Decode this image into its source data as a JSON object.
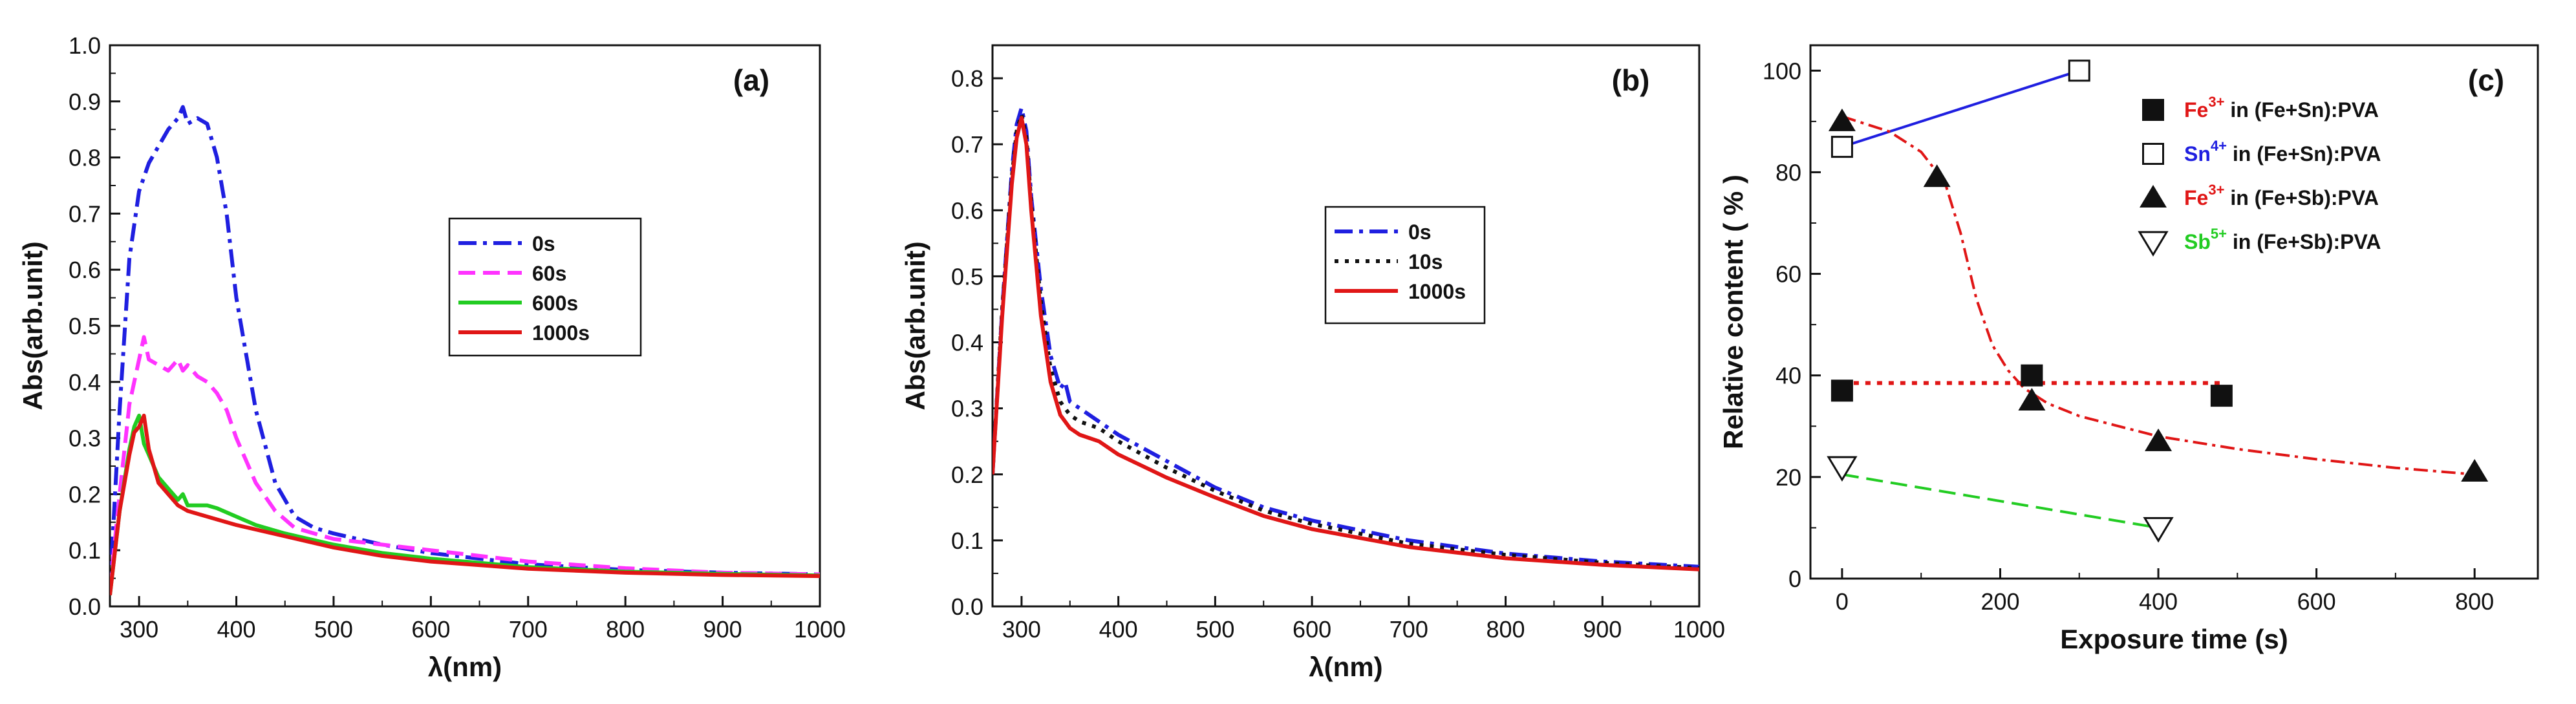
{
  "colors": {
    "blue": "#1f1fe0",
    "magenta": "#ff33ff",
    "green": "#22cc22",
    "red": "#e01616",
    "black": "#111111"
  },
  "chart_data": [
    {
      "type": "line",
      "panel_label": "(a)",
      "xlabel": "λ(nm)",
      "ylabel": "Abs(arb.unit)",
      "xlim": [
        270,
        1000
      ],
      "ylim": [
        0,
        1.0
      ],
      "xticks": [
        "300",
        "400",
        "500",
        "600",
        "700",
        "800",
        "900",
        "1000"
      ],
      "yticks": [
        "0.0",
        "0.1",
        "0.2",
        "0.3",
        "0.4",
        "0.5",
        "0.6",
        "0.7",
        "0.8",
        "0.9",
        "1.0"
      ],
      "series": [
        {
          "name": "0s",
          "style": "dashdot",
          "color": "#1f1fe0",
          "x": [
            270,
            280,
            290,
            300,
            310,
            320,
            330,
            340,
            345,
            350,
            360,
            370,
            380,
            390,
            400,
            420,
            440,
            460,
            480,
            500,
            550,
            600,
            700,
            800,
            900,
            1000
          ],
          "y": [
            0.03,
            0.35,
            0.62,
            0.74,
            0.79,
            0.82,
            0.85,
            0.87,
            0.89,
            0.86,
            0.87,
            0.86,
            0.8,
            0.7,
            0.55,
            0.35,
            0.22,
            0.16,
            0.14,
            0.13,
            0.11,
            0.095,
            0.075,
            0.065,
            0.06,
            0.057
          ]
        },
        {
          "name": "60s",
          "style": "dash",
          "color": "#ff33ff",
          "x": [
            270,
            280,
            290,
            300,
            305,
            310,
            320,
            330,
            340,
            345,
            350,
            360,
            370,
            380,
            390,
            400,
            420,
            440,
            460,
            480,
            500,
            550,
            600,
            700,
            800,
            900,
            1000
          ],
          "y": [
            0.03,
            0.2,
            0.36,
            0.44,
            0.48,
            0.44,
            0.43,
            0.42,
            0.44,
            0.42,
            0.43,
            0.41,
            0.4,
            0.38,
            0.35,
            0.3,
            0.22,
            0.17,
            0.14,
            0.13,
            0.12,
            0.11,
            0.1,
            0.08,
            0.068,
            0.06,
            0.057
          ]
        },
        {
          "name": "600s",
          "style": "solid",
          "color": "#22cc22",
          "x": [
            270,
            280,
            290,
            295,
            300,
            305,
            310,
            320,
            330,
            340,
            345,
            350,
            360,
            370,
            380,
            400,
            420,
            450,
            500,
            550,
            600,
            700,
            800,
            900,
            1000
          ],
          "y": [
            0.02,
            0.17,
            0.28,
            0.32,
            0.34,
            0.29,
            0.27,
            0.23,
            0.21,
            0.19,
            0.2,
            0.18,
            0.18,
            0.18,
            0.175,
            0.16,
            0.145,
            0.13,
            0.11,
            0.095,
            0.085,
            0.07,
            0.062,
            0.058,
            0.055
          ]
        },
        {
          "name": "1000s",
          "style": "solid",
          "color": "#e01616",
          "x": [
            270,
            280,
            290,
            295,
            300,
            305,
            310,
            320,
            330,
            340,
            350,
            360,
            380,
            400,
            450,
            500,
            550,
            600,
            700,
            800,
            900,
            1000
          ],
          "y": [
            0.02,
            0.17,
            0.27,
            0.31,
            0.32,
            0.34,
            0.28,
            0.22,
            0.2,
            0.18,
            0.17,
            0.165,
            0.155,
            0.145,
            0.125,
            0.105,
            0.09,
            0.08,
            0.067,
            0.06,
            0.056,
            0.054
          ]
        }
      ],
      "legend": {
        "position": "center",
        "entries": [
          "0s",
          "60s",
          "600s",
          "1000s"
        ]
      }
    },
    {
      "type": "line",
      "panel_label": "(b)",
      "xlabel": "λ(nm)",
      "ylabel": "Abs(arb.unit)",
      "xlim": [
        270,
        1000
      ],
      "ylim": [
        0,
        0.85
      ],
      "xticks": [
        "300",
        "400",
        "500",
        "600",
        "700",
        "800",
        "900",
        "1000"
      ],
      "yticks": [
        "0.0",
        "0.1",
        "0.2",
        "0.3",
        "0.4",
        "0.5",
        "0.6",
        "0.7",
        "0.8"
      ],
      "series": [
        {
          "name": "0s",
          "style": "dashdot",
          "color": "#1f1fe0",
          "x": [
            270,
            280,
            290,
            295,
            300,
            305,
            310,
            320,
            330,
            340,
            345,
            350,
            360,
            380,
            400,
            450,
            500,
            550,
            600,
            700,
            800,
            900,
            1000
          ],
          "y": [
            0.2,
            0.45,
            0.66,
            0.73,
            0.755,
            0.72,
            0.62,
            0.48,
            0.38,
            0.33,
            0.34,
            0.31,
            0.3,
            0.28,
            0.26,
            0.22,
            0.18,
            0.15,
            0.13,
            0.1,
            0.08,
            0.068,
            0.06
          ]
        },
        {
          "name": "10s",
          "style": "dot",
          "color": "#111111",
          "x": [
            270,
            280,
            290,
            295,
            300,
            305,
            310,
            320,
            330,
            340,
            350,
            360,
            380,
            400,
            450,
            500,
            550,
            600,
            700,
            800,
            900,
            1000
          ],
          "y": [
            0.2,
            0.45,
            0.65,
            0.72,
            0.745,
            0.71,
            0.61,
            0.46,
            0.36,
            0.31,
            0.29,
            0.28,
            0.27,
            0.25,
            0.21,
            0.175,
            0.145,
            0.125,
            0.095,
            0.078,
            0.066,
            0.058
          ]
        },
        {
          "name": "1000s",
          "style": "solid",
          "color": "#e01616",
          "x": [
            270,
            280,
            290,
            295,
            300,
            305,
            310,
            320,
            330,
            340,
            350,
            360,
            380,
            400,
            450,
            500,
            550,
            600,
            700,
            800,
            900,
            1000
          ],
          "y": [
            0.2,
            0.44,
            0.64,
            0.71,
            0.74,
            0.7,
            0.6,
            0.44,
            0.34,
            0.29,
            0.27,
            0.26,
            0.25,
            0.23,
            0.195,
            0.165,
            0.137,
            0.117,
            0.09,
            0.073,
            0.063,
            0.056
          ]
        }
      ],
      "legend": {
        "position": "center",
        "entries": [
          "0s",
          "10s",
          "1000s"
        ]
      }
    },
    {
      "type": "scatter",
      "panel_label": "(c)",
      "xlabel": "Exposure time (s)",
      "ylabel": "Relative content ( % )",
      "xlim": [
        -40,
        880
      ],
      "ylim": [
        0,
        105
      ],
      "xticks": [
        "0",
        "200",
        "400",
        "600",
        "800"
      ],
      "yticks": [
        "0",
        "20",
        "40",
        "60",
        "80",
        "100"
      ],
      "series": [
        {
          "name": "Fe3+ in (Fe+Sn):PVA",
          "ion": "Fe",
          "charge": "3+",
          "matrix": " in (Fe+Sn):PVA",
          "ion_color": "#e01616",
          "marker": "square-filled",
          "x": [
            0,
            240,
            480
          ],
          "y": [
            37,
            40,
            36
          ],
          "fit": {
            "style": "dot",
            "color": "#e01616",
            "x": [
              0,
              480
            ],
            "y": [
              38.5,
              38.5
            ]
          }
        },
        {
          "name": "Sn4+ in (Fe+Sn):PVA",
          "ion": "Sn",
          "charge": "4+",
          "matrix": " in (Fe+Sn):PVA",
          "ion_color": "#1f1fe0",
          "marker": "square-open",
          "x": [
            0,
            300
          ],
          "y": [
            85,
            100
          ],
          "fit": {
            "style": "solid",
            "color": "#1f1fe0",
            "x": [
              0,
              300
            ],
            "y": [
              85,
              100
            ]
          }
        },
        {
          "name": "Fe3+ in (Fe+Sb):PVA",
          "ion": "Fe",
          "charge": "3+",
          "matrix": " in (Fe+Sb):PVA",
          "ion_color": "#e01616",
          "marker": "triangle-up-filled",
          "x": [
            0,
            120,
            240,
            400,
            800
          ],
          "y": [
            90,
            79,
            35,
            27,
            21
          ],
          "fit": {
            "style": "dashdot",
            "color": "#e01616",
            "x": [
              0,
              60,
              100,
              130,
              150,
              170,
              190,
              210,
              230,
              260,
              300,
              400,
              500,
              600,
              700,
              800
            ],
            "y": [
              91,
              88,
              84,
              78,
              68,
              55,
              46,
              41,
              37.5,
              34.5,
              32,
              28,
              25.5,
              23.5,
              21.8,
              20.5
            ]
          }
        },
        {
          "name": "Sb5+ in (Fe+Sb):PVA",
          "ion": "Sb",
          "charge": "5+",
          "matrix": " in (Fe+Sb):PVA",
          "ion_color": "#22cc22",
          "marker": "triangle-down-open",
          "x": [
            0,
            400
          ],
          "y": [
            22,
            10
          ],
          "fit": {
            "style": "dash",
            "color": "#22cc22",
            "x": [
              0,
              400
            ],
            "y": [
              20.5,
              10
            ]
          }
        }
      ],
      "legend": {
        "position": "top-right"
      }
    }
  ]
}
